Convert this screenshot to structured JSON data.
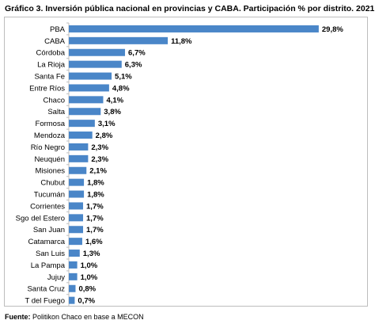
{
  "title": "Gráfico 3. Inversión pública nacional en provincias y CABA. Participación % por distrito. 2021",
  "source": {
    "label": "Fuente:",
    "text": "Politikon Chaco en base a MECON"
  },
  "colors": {
    "bar": "#4a86c8",
    "axis": "#bfbfbf",
    "frame": "#bdbdbd"
  },
  "chart_data": {
    "type": "bar",
    "orientation": "horizontal",
    "title": "Gráfico 3. Inversión pública nacional en provincias y CABA. Participación % por distrito. 2021",
    "xlabel": "",
    "ylabel": "",
    "unit": "%",
    "xlim": [
      0,
      30
    ],
    "grid": false,
    "legend": "none",
    "categories": [
      "PBA",
      "CABA",
      "Córdoba",
      "La Rioja",
      "Santa Fe",
      "Entre Ríos",
      "Chaco",
      "Salta",
      "Formosa",
      "Mendoza",
      "Río Negro",
      "Neuquén",
      "Misiones",
      "Chubut",
      "Tucumán",
      "Corrientes",
      "Sgo del Estero",
      "San Juan",
      "Catamarca",
      "San Luis",
      "La Pampa",
      "Jujuy",
      "Santa Cruz",
      "T del Fuego"
    ],
    "values": [
      29.8,
      11.8,
      6.7,
      6.3,
      5.1,
      4.8,
      4.1,
      3.8,
      3.1,
      2.8,
      2.3,
      2.3,
      2.1,
      1.8,
      1.8,
      1.7,
      1.7,
      1.7,
      1.6,
      1.3,
      1.0,
      1.0,
      0.8,
      0.7
    ],
    "data_labels": [
      "29,8%",
      "11,8%",
      "6,7%",
      "6,3%",
      "5,1%",
      "4,8%",
      "4,1%",
      "3,8%",
      "3,1%",
      "2,8%",
      "2,3%",
      "2,3%",
      "2,1%",
      "1,8%",
      "1,8%",
      "1,7%",
      "1,7%",
      "1,7%",
      "1,6%",
      "1,3%",
      "1,0%",
      "1,0%",
      "0,8%",
      "0,7%"
    ]
  }
}
